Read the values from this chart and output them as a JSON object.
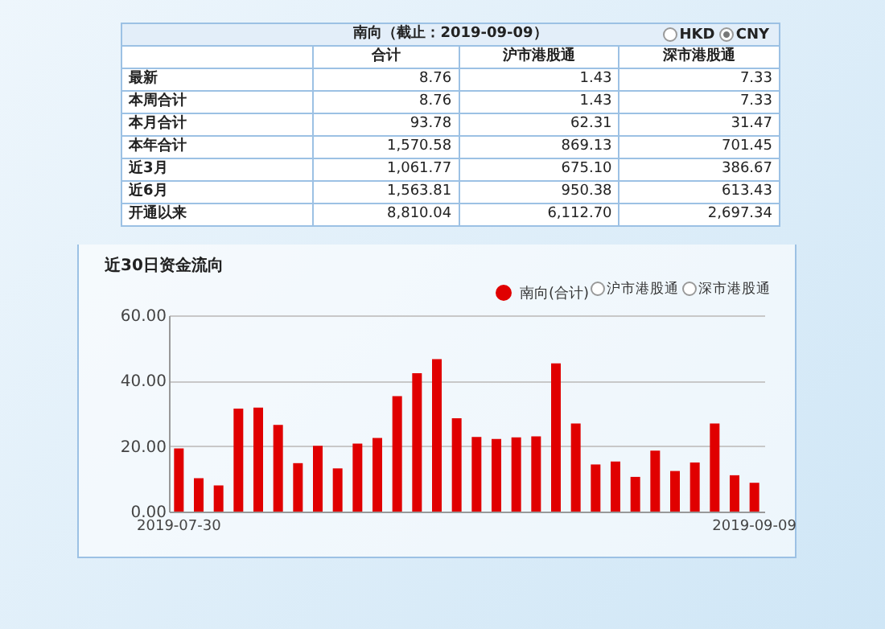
{
  "chart_data": [
    {
      "type": "other",
      "title": "南向（截止：2019-09-09）",
      "annotations": [
        "HKD",
        "CNY",
        "合计",
        "沪市港股通",
        "深市港股通",
        "最新",
        "8.76",
        "1.43",
        "7.33",
        "本周合计",
        "8.76",
        "1.43",
        "7.33",
        "本月合计",
        "93.78",
        "62.31",
        "31.47",
        "本年合计",
        "1,570.58",
        "869.13",
        "701.45",
        "近3月",
        "1,061.77",
        "675.10",
        "386.67",
        "近6月",
        "1,563.81",
        "950.38",
        "613.43",
        "开通以来",
        "8,810.04",
        "6,112.70",
        "2,697.34"
      ]
    },
    {
      "type": "bar",
      "title": "近30日资金流向",
      "categories": [
        "2019-07-30",
        null,
        null,
        null,
        null,
        null,
        null,
        null,
        null,
        null,
        null,
        null,
        null,
        null,
        null,
        null,
        null,
        null,
        null,
        null,
        null,
        null,
        null,
        null,
        null,
        null,
        null,
        null,
        null,
        "2019-09-09"
      ],
      "series": [
        {
          "name": "南向(合计)",
          "color": "#e00000",
          "values": [
            19.3,
            10.2,
            8.0,
            31.5,
            31.8,
            26.5,
            14.8,
            20.1,
            13.2,
            20.8,
            22.5,
            35.3,
            42.3,
            46.6,
            28.5,
            22.8,
            22.2,
            22.7,
            23.0,
            45.3,
            26.9,
            14.4,
            15.3,
            10.6,
            18.6,
            12.4,
            15.0,
            26.9,
            11.1,
            8.8
          ]
        }
      ],
      "annotations": [
        "沪市港股通",
        "深市港股通"
      ],
      "ylim": [
        0,
        60
      ],
      "yticks": [
        {
          "value": 0,
          "label": "0.00"
        },
        {
          "value": 20,
          "label": "20.00"
        },
        {
          "value": 40,
          "label": "40.00"
        },
        {
          "value": 60,
          "label": "60.00"
        }
      ],
      "grid": "y",
      "legend": "top right"
    }
  ]
}
